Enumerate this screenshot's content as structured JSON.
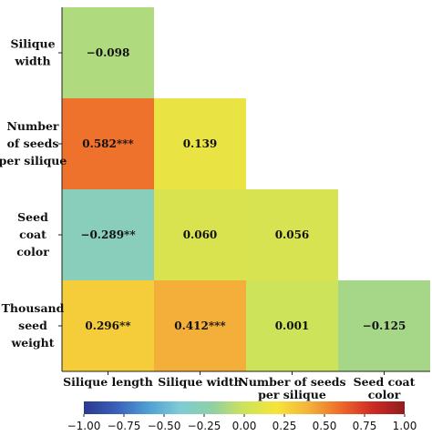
{
  "chart_data": {
    "type": "heatmap",
    "layout": "lower-triangle",
    "rows": [
      "Silique width",
      "Number of seeds per silique",
      "Seed coat color",
      "Thousand seed weight"
    ],
    "row_label_lines": [
      [
        "Silique",
        "width"
      ],
      [
        "Number",
        "of seeds",
        "per silique"
      ],
      [
        "Seed",
        "coat",
        "color"
      ],
      [
        "Thousand",
        "seed",
        "weight"
      ]
    ],
    "columns": [
      "Silique length",
      "Silique width",
      "Number of seeds per silique",
      "Seed coat color"
    ],
    "column_label_lines": [
      [
        "Silique length"
      ],
      [
        "Silique width"
      ],
      [
        "Number of seeds",
        "per silique"
      ],
      [
        "Seed coat",
        "color"
      ]
    ],
    "cells": [
      {
        "row": 0,
        "col": 0,
        "value": -0.098,
        "label": "−0.098"
      },
      {
        "row": 1,
        "col": 0,
        "value": 0.582,
        "label": "0.582***"
      },
      {
        "row": 1,
        "col": 1,
        "value": 0.139,
        "label": "0.139"
      },
      {
        "row": 2,
        "col": 0,
        "value": -0.289,
        "label": "−0.289**"
      },
      {
        "row": 2,
        "col": 1,
        "value": 0.06,
        "label": "0.060"
      },
      {
        "row": 2,
        "col": 2,
        "value": 0.056,
        "label": "0.056"
      },
      {
        "row": 3,
        "col": 0,
        "value": 0.296,
        "label": "0.296**"
      },
      {
        "row": 3,
        "col": 1,
        "value": 0.412,
        "label": "0.412***"
      },
      {
        "row": 3,
        "col": 2,
        "value": 0.001,
        "label": "0.001"
      },
      {
        "row": 3,
        "col": 3,
        "value": -0.125,
        "label": "−0.125"
      }
    ],
    "colorbar": {
      "range": [
        -1.0,
        1.0
      ],
      "ticks": [
        -1.0,
        -0.75,
        -0.5,
        -0.25,
        0.0,
        0.25,
        0.5,
        0.75,
        1.0
      ],
      "tick_labels": [
        "−1.00",
        "−0.75",
        "−0.50",
        "−0.25",
        "0.00",
        "0.25",
        "0.50",
        "0.75",
        "1.00"
      ],
      "colors": [
        "#2b3a8f",
        "#3b5fb8",
        "#4f9fd4",
        "#7fcbd6",
        "#8fd0a4",
        "#cde35a",
        "#f6e43a",
        "#f3b33a",
        "#ee6a2b",
        "#cf2a24",
        "#8e1e1e"
      ],
      "placement": "bottom"
    }
  }
}
